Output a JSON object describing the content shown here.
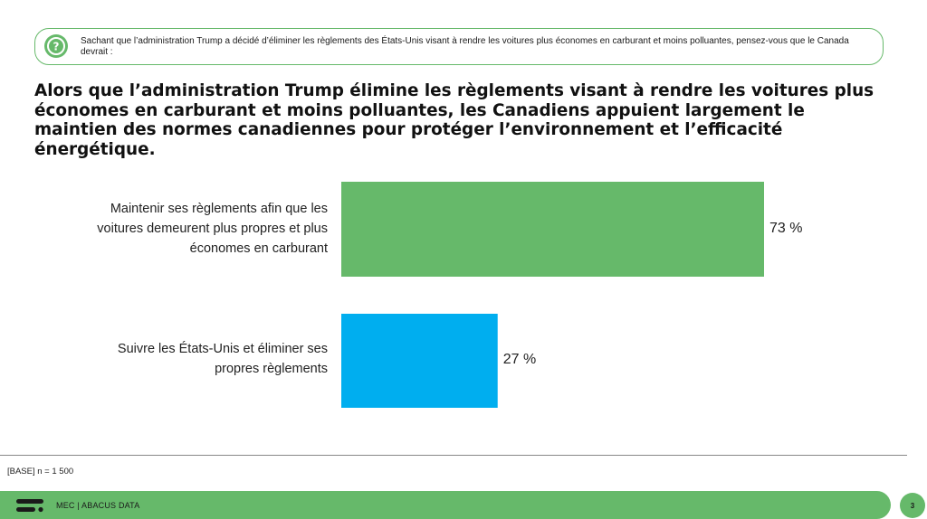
{
  "question": {
    "icon": "question-mark-icon",
    "text": "Sachant que l’administration Trump a décidé d’éliminer les règlements des États-Unis visant à rendre les voitures plus économes en carburant et moins polluantes, pensez-vous que le Canada devrait :"
  },
  "headline": "Alors que l’administration Trump élimine les règlements visant à rendre les voitures plus économes en carburant et moins polluantes, les Canadiens appuient largement le maintien des normes canadiennes pour protéger l’environnement et l’efficacité énergétique.",
  "chart_data": {
    "type": "bar",
    "orientation": "horizontal",
    "categories": [
      "Maintenir ses règlements afin que les voitures demeurent plus propres et plus économes en carburant",
      "Suivre les États-Unis et éliminer ses propres règlements"
    ],
    "values": [
      73,
      27
    ],
    "value_labels": [
      "73 %",
      "27 %"
    ],
    "colors": [
      "#66b96a",
      "#00aeef"
    ],
    "xlim": [
      0,
      100
    ],
    "grid": false,
    "legend": "none"
  },
  "base_note": "[BASE] n = 1 500",
  "footer": {
    "logo_icon": "abacus-logo-icon",
    "text": "MEC | ABACUS DATA",
    "page_number": "3",
    "accent_color": "#66b96a"
  }
}
